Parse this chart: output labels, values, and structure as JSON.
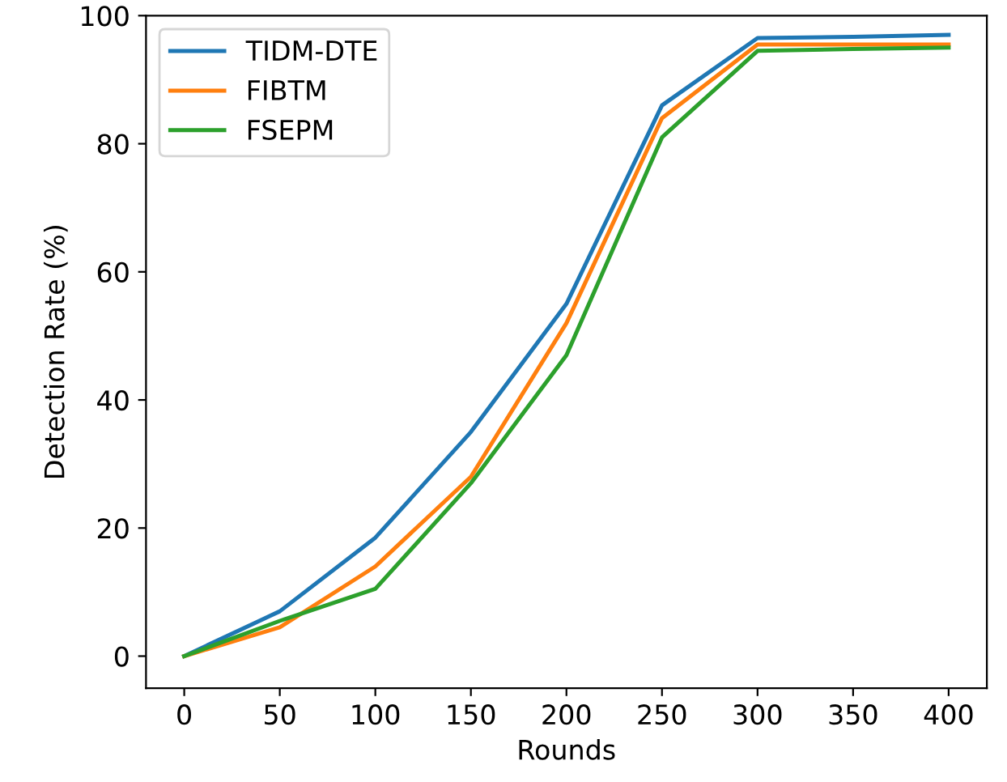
{
  "chart_data": {
    "type": "line",
    "xlabel": "Rounds",
    "ylabel": "Detection Rate (%)",
    "x": [
      0,
      50,
      100,
      150,
      200,
      250,
      300,
      350,
      400
    ],
    "series": [
      {
        "name": "TIDM-DTE",
        "color": "#1f77b4",
        "values": [
          0,
          7,
          18.5,
          35,
          55,
          86,
          96.5,
          96.7,
          97
        ]
      },
      {
        "name": "FIBTM",
        "color": "#ff7f0e",
        "values": [
          0,
          4.5,
          14,
          28,
          52,
          84,
          95.5,
          95.5,
          95.5
        ]
      },
      {
        "name": "FSEPM",
        "color": "#2ca02c",
        "values": [
          0,
          5.5,
          10.5,
          27,
          47,
          81,
          94.5,
          94.8,
          95
        ]
      }
    ],
    "xlim": [
      -20,
      420
    ],
    "ylim": [
      -5,
      100
    ],
    "xticks": [
      0,
      50,
      100,
      150,
      200,
      250,
      300,
      350,
      400
    ],
    "yticks": [
      0,
      20,
      40,
      60,
      80,
      100
    ],
    "legend": "top left",
    "grid": false,
    "marker": "none",
    "line_style": "solid"
  }
}
